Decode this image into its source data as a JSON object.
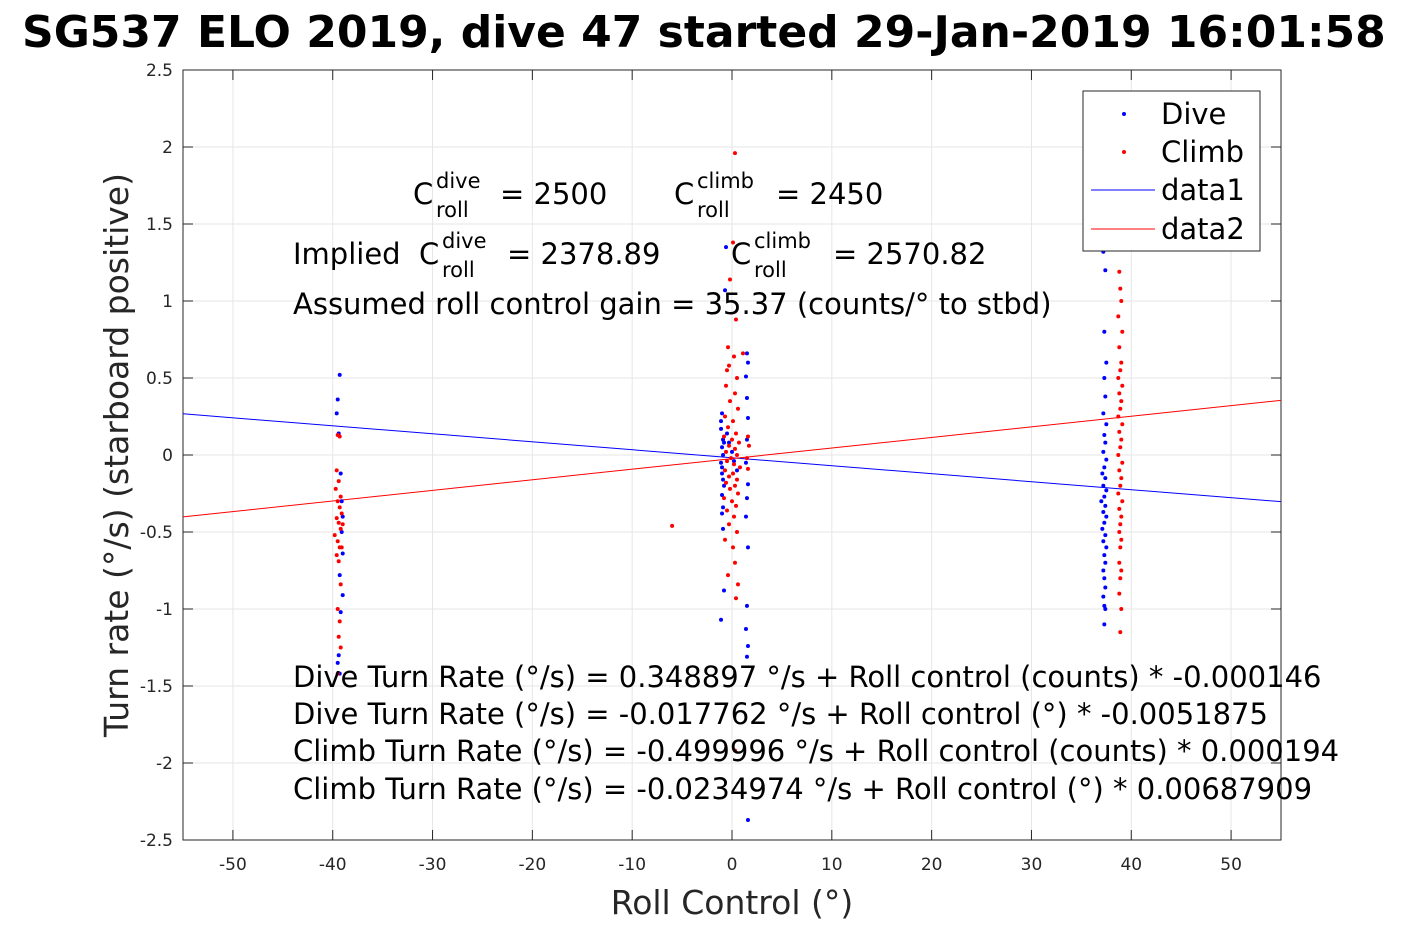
{
  "chart_data": {
    "type": "scatter",
    "title": "SG537 ELO 2019, dive 47 started 29-Jan-2019 16:01:58",
    "xlabel": "Roll Control (°)",
    "ylabel": "Turn rate (°/s) (starboard positive)",
    "xlim": [
      -55,
      55
    ],
    "ylim": [
      -2.5,
      2.5
    ],
    "xticks": [
      -50,
      -40,
      -30,
      -20,
      -10,
      0,
      10,
      20,
      30,
      40,
      50
    ],
    "yticks": [
      -2.5,
      -2,
      -1.5,
      -1,
      -0.5,
      0,
      0.5,
      1,
      1.5,
      2,
      2.5
    ],
    "xtick_labels": [
      "-50",
      "-40",
      "-30",
      "-20",
      "-10",
      "0",
      "10",
      "20",
      "30",
      "40",
      "50"
    ],
    "ytick_labels": [
      "-2.5",
      "-2",
      "-1.5",
      "-1",
      "-0.5",
      "0",
      "0.5",
      "1",
      "1.5",
      "2",
      "2.5"
    ],
    "grid": true,
    "legend_placement": "top-right",
    "series": [
      {
        "name": "Dive",
        "kind": "points",
        "color": "#0000ff",
        "points": [
          [
            -39.3,
            0.52
          ],
          [
            -39.5,
            0.36
          ],
          [
            -39.6,
            0.27
          ],
          [
            -39.4,
            0.14
          ],
          [
            -39.2,
            -0.12
          ],
          [
            -39.1,
            -0.5
          ],
          [
            -39.0,
            -0.64
          ],
          [
            -39.3,
            -0.78
          ],
          [
            -39.0,
            -0.91
          ],
          [
            -39.2,
            -1.02
          ],
          [
            -39.4,
            -1.3
          ],
          [
            -39.5,
            -1.35
          ],
          [
            -39.3,
            -1.42
          ],
          [
            -39.1,
            -0.3
          ],
          [
            -39.0,
            -0.4
          ],
          [
            -1.0,
            0.27
          ],
          [
            -1.1,
            0.17
          ],
          [
            -0.9,
            0.1
          ],
          [
            -1.0,
            0.05
          ],
          [
            -0.9,
            0.0
          ],
          [
            -1.1,
            -0.05
          ],
          [
            -1.0,
            -0.12
          ],
          [
            -0.8,
            -0.2
          ],
          [
            -1.0,
            -0.26
          ],
          [
            -0.9,
            -0.34
          ],
          [
            -1.1,
            0.22
          ],
          [
            -0.8,
            0.08
          ],
          [
            -1.0,
            -0.08
          ],
          [
            -0.9,
            -0.16
          ],
          [
            -1.0,
            -0.38
          ],
          [
            -0.9,
            -0.48
          ],
          [
            -0.8,
            -0.88
          ],
          [
            -1.1,
            -1.07
          ],
          [
            -0.7,
            1.07
          ],
          [
            -0.6,
            1.35
          ],
          [
            0.0,
            0.02
          ],
          [
            0.2,
            -0.04
          ],
          [
            -0.3,
            0.08
          ],
          [
            0.5,
            -0.1
          ],
          [
            -0.5,
            0.14
          ],
          [
            1.5,
            0.66
          ],
          [
            1.6,
            0.6
          ],
          [
            1.4,
            0.51
          ],
          [
            1.5,
            0.37
          ],
          [
            1.6,
            0.24
          ],
          [
            1.5,
            0.1
          ],
          [
            1.4,
            -0.05
          ],
          [
            1.6,
            -0.19
          ],
          [
            1.5,
            -0.28
          ],
          [
            1.4,
            -0.4
          ],
          [
            1.6,
            -0.6
          ],
          [
            1.5,
            -0.98
          ],
          [
            1.4,
            -1.13
          ],
          [
            1.6,
            -1.24
          ],
          [
            1.5,
            -1.31
          ],
          [
            1.6,
            -2.37
          ],
          [
            37.2,
            1.32
          ],
          [
            37.4,
            1.2
          ],
          [
            37.3,
            0.8
          ],
          [
            37.5,
            0.6
          ],
          [
            37.3,
            0.5
          ],
          [
            37.4,
            0.38
          ],
          [
            37.2,
            0.27
          ],
          [
            37.5,
            0.2
          ],
          [
            37.3,
            0.13
          ],
          [
            37.4,
            0.08
          ],
          [
            37.2,
            0.02
          ],
          [
            37.5,
            -0.03
          ],
          [
            37.3,
            -0.08
          ],
          [
            37.1,
            -0.12
          ],
          [
            37.4,
            -0.15
          ],
          [
            37.2,
            -0.2
          ],
          [
            37.5,
            -0.23
          ],
          [
            37.3,
            -0.27
          ],
          [
            37.0,
            -0.3
          ],
          [
            37.4,
            -0.33
          ],
          [
            37.2,
            -0.37
          ],
          [
            37.5,
            -0.4
          ],
          [
            37.3,
            -0.44
          ],
          [
            37.1,
            -0.48
          ],
          [
            37.4,
            -0.52
          ],
          [
            37.2,
            -0.56
          ],
          [
            37.5,
            -0.6
          ],
          [
            37.3,
            -0.65
          ],
          [
            37.4,
            -0.7
          ],
          [
            37.2,
            -0.75
          ],
          [
            37.3,
            -0.8
          ],
          [
            37.4,
            -0.86
          ],
          [
            37.2,
            -0.92
          ],
          [
            37.3,
            -0.98
          ],
          [
            37.4,
            -1.0
          ],
          [
            37.3,
            -1.1
          ]
        ]
      },
      {
        "name": "Climb",
        "kind": "points",
        "color": "#ff0000",
        "points": [
          [
            -39.5,
            0.13
          ],
          [
            -39.3,
            0.12
          ],
          [
            -39.6,
            -0.1
          ],
          [
            -39.4,
            -0.17
          ],
          [
            -39.7,
            -0.22
          ],
          [
            -39.2,
            -0.27
          ],
          [
            -39.5,
            -0.3
          ],
          [
            -39.3,
            -0.34
          ],
          [
            -39.1,
            -0.38
          ],
          [
            -39.6,
            -0.41
          ],
          [
            -39.4,
            -0.44
          ],
          [
            -39.2,
            -0.48
          ],
          [
            -39.8,
            -0.52
          ],
          [
            -39.5,
            -0.56
          ],
          [
            -39.3,
            -0.6
          ],
          [
            -39.6,
            -0.65
          ],
          [
            -39.4,
            -0.69
          ],
          [
            -39.2,
            -0.84
          ],
          [
            -39.5,
            -1.0
          ],
          [
            -39.3,
            -1.08
          ],
          [
            -39.4,
            -1.18
          ],
          [
            -39.2,
            -1.25
          ],
          [
            -39.5,
            -1.42
          ],
          [
            -39.0,
            -0.45
          ],
          [
            -39.1,
            -0.6
          ],
          [
            0.3,
            1.96
          ],
          [
            0.1,
            1.38
          ],
          [
            -0.2,
            1.14
          ],
          [
            0.4,
            0.88
          ],
          [
            -0.4,
            0.7
          ],
          [
            0.2,
            0.64
          ],
          [
            -0.3,
            0.58
          ],
          [
            1.1,
            0.66
          ],
          [
            -0.5,
            0.55
          ],
          [
            0.5,
            0.5
          ],
          [
            -0.6,
            0.45
          ],
          [
            0.3,
            0.4
          ],
          [
            -0.2,
            0.35
          ],
          [
            0.6,
            0.3
          ],
          [
            -0.7,
            0.25
          ],
          [
            0.1,
            0.22
          ],
          [
            -0.4,
            0.18
          ],
          [
            0.4,
            0.14
          ],
          [
            -0.8,
            0.12
          ],
          [
            0.0,
            0.1
          ],
          [
            0.7,
            0.08
          ],
          [
            -0.3,
            0.06
          ],
          [
            0.3,
            0.04
          ],
          [
            -0.6,
            0.02
          ],
          [
            0.5,
            0.0
          ],
          [
            -0.1,
            -0.02
          ],
          [
            -0.5,
            -0.04
          ],
          [
            0.2,
            -0.06
          ],
          [
            0.8,
            -0.08
          ],
          [
            -0.7,
            -0.1
          ],
          [
            0.1,
            -0.12
          ],
          [
            -0.3,
            -0.14
          ],
          [
            0.5,
            -0.16
          ],
          [
            -0.6,
            -0.18
          ],
          [
            0.3,
            -0.2
          ],
          [
            -0.2,
            -0.22
          ],
          [
            0.6,
            -0.25
          ],
          [
            -0.8,
            -0.28
          ],
          [
            0.0,
            -0.3
          ],
          [
            0.4,
            -0.33
          ],
          [
            -0.5,
            -0.36
          ],
          [
            0.2,
            -0.4
          ],
          [
            -0.3,
            -0.45
          ],
          [
            0.5,
            -0.5
          ],
          [
            -0.7,
            -0.55
          ],
          [
            0.1,
            -0.6
          ],
          [
            0.3,
            -0.7
          ],
          [
            -0.4,
            -0.78
          ],
          [
            0.6,
            -0.84
          ],
          [
            0.4,
            -0.93
          ],
          [
            0.3,
            -1.92
          ],
          [
            1.6,
            0.12
          ],
          [
            1.7,
            0.06
          ],
          [
            1.5,
            -0.02
          ],
          [
            1.6,
            -0.09
          ],
          [
            -6.0,
            -0.46
          ],
          [
            38.8,
            1.19
          ],
          [
            38.9,
            1.08
          ],
          [
            39.0,
            1.0
          ],
          [
            38.7,
            0.9
          ],
          [
            39.1,
            0.8
          ],
          [
            38.8,
            0.7
          ],
          [
            39.0,
            0.6
          ],
          [
            38.9,
            0.55
          ],
          [
            38.7,
            0.5
          ],
          [
            39.1,
            0.45
          ],
          [
            38.8,
            0.4
          ],
          [
            39.0,
            0.35
          ],
          [
            38.9,
            0.3
          ],
          [
            38.7,
            0.25
          ],
          [
            39.1,
            0.2
          ],
          [
            38.8,
            0.15
          ],
          [
            39.0,
            0.1
          ],
          [
            38.9,
            0.05
          ],
          [
            38.7,
            0.0
          ],
          [
            39.1,
            -0.05
          ],
          [
            38.8,
            -0.1
          ],
          [
            39.0,
            -0.15
          ],
          [
            38.9,
            -0.2
          ],
          [
            38.7,
            -0.25
          ],
          [
            39.1,
            -0.3
          ],
          [
            38.8,
            -0.35
          ],
          [
            39.0,
            -0.4
          ],
          [
            38.9,
            -0.45
          ],
          [
            38.8,
            -0.5
          ],
          [
            39.0,
            -0.55
          ],
          [
            38.9,
            -0.6
          ],
          [
            38.8,
            -0.7
          ],
          [
            39.0,
            -0.75
          ],
          [
            38.9,
            -0.8
          ],
          [
            38.8,
            -0.9
          ],
          [
            39.0,
            -1.0
          ],
          [
            38.9,
            -1.15
          ]
        ]
      },
      {
        "name": "data1",
        "kind": "line",
        "color": "#0000ff",
        "x": [
          -55,
          55
        ],
        "y": [
          0.2675,
          -0.3031
        ]
      },
      {
        "name": "data2",
        "kind": "line",
        "color": "#ff0000",
        "x": [
          -55,
          55
        ],
        "y": [
          -0.4018,
          0.3549
        ]
      }
    ],
    "annotations": {
      "c_dive": {
        "base": "C",
        "sub": "roll",
        "sup": "dive",
        "value": "= 2500"
      },
      "c_climb": {
        "base": "C",
        "sub": "roll",
        "sup": "climb",
        "value": "= 2450"
      },
      "implied_prefix": "Implied ",
      "implied_dive": {
        "base": "C",
        "sub": "roll",
        "sup": "dive",
        "value": "= 2378.89"
      },
      "implied_climb": {
        "base": "C",
        "sub": "roll",
        "sup": "climb",
        "value": "= 2570.82"
      },
      "gain": "Assumed roll control gain = 35.37 (counts/° to stbd)",
      "fits": [
        "Dive Turn Rate (°/s) = 0.348897 °/s + Roll control (counts) * -0.000146",
        "Dive Turn Rate (°/s) = -0.017762 °/s + Roll control (°) * -0.0051875",
        "Climb Turn Rate (°/s) = -0.499996 °/s + Roll control (counts) * 0.000194",
        "Climb Turn Rate (°/s) = -0.0234974 °/s + Roll control (°) * 0.00687909"
      ]
    }
  }
}
